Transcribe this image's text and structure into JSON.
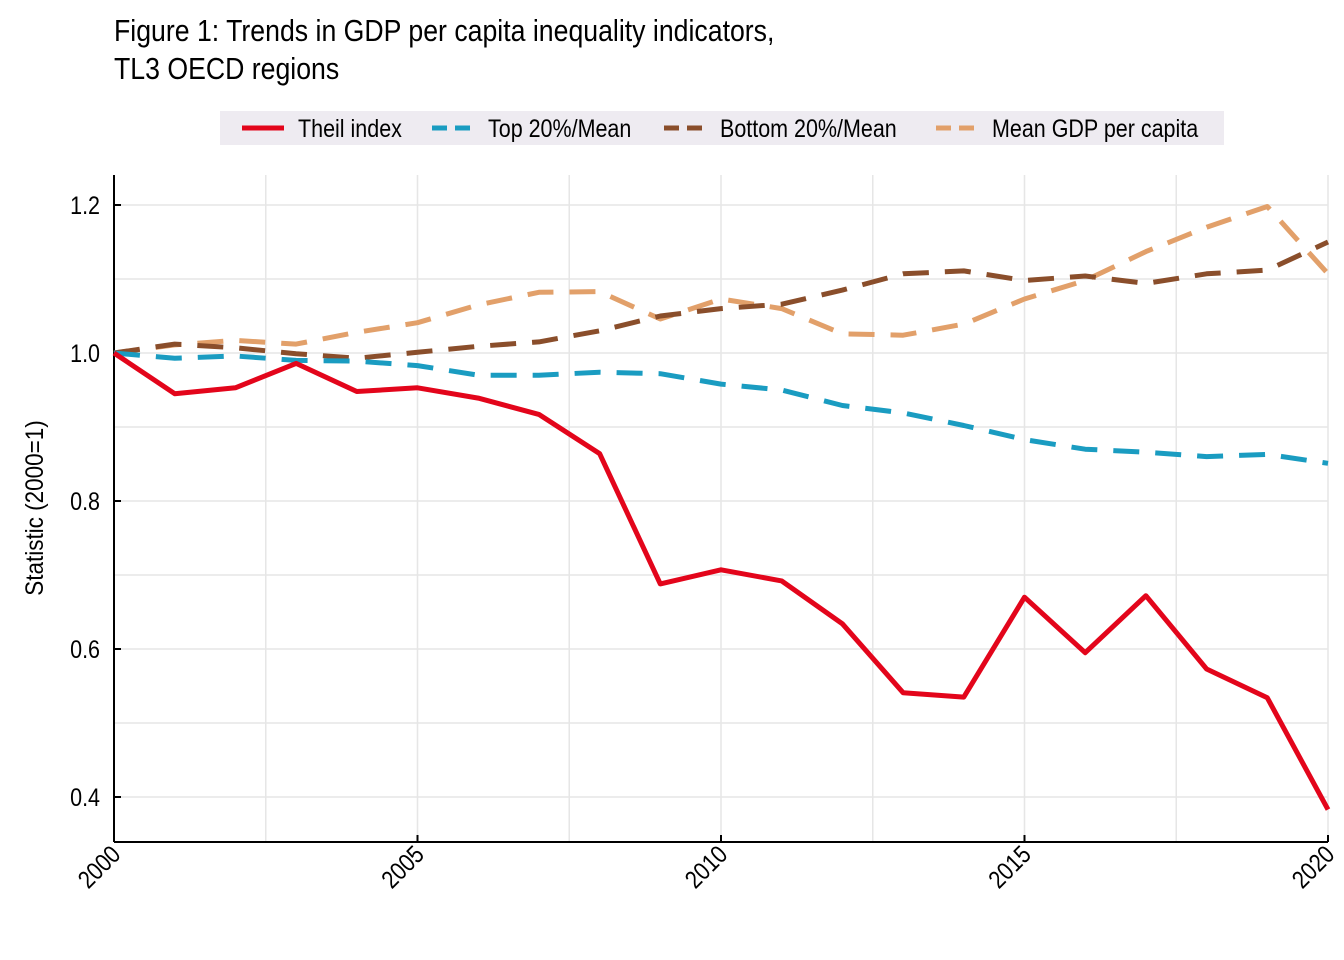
{
  "title_line1": "Figure 1: Trends in GDP per capita inequality indicators,",
  "title_line2": "TL3 OECD regions",
  "chart_data": {
    "type": "line",
    "ylabel": "Statistic (2000=1)",
    "xlabel": "",
    "xlim": [
      2000,
      2020
    ],
    "ylim": [
      0.34,
      1.24
    ],
    "x_ticks": [
      2000,
      2005,
      2010,
      2015,
      2020
    ],
    "y_ticks": [
      0.4,
      0.6,
      0.8,
      1.0,
      1.2
    ],
    "y_tick_labels": [
      "0.4",
      "0.6",
      "0.8",
      "1.0",
      "1.2"
    ],
    "grid": true,
    "legend_position": "top",
    "x": [
      2000,
      2001,
      2002,
      2003,
      2004,
      2005,
      2006,
      2007,
      2008,
      2009,
      2010,
      2011,
      2012,
      2013,
      2014,
      2015,
      2016,
      2017,
      2018,
      2019,
      2020
    ],
    "series": [
      {
        "name": "Theil index",
        "color": "#e3051b",
        "dash": "solid",
        "values": [
          1.0,
          0.945,
          0.953,
          0.986,
          0.948,
          0.953,
          0.939,
          0.917,
          0.864,
          0.688,
          0.707,
          0.692,
          0.634,
          0.541,
          0.535,
          0.67,
          0.595,
          0.672,
          0.573,
          0.534,
          0.383
        ]
      },
      {
        "name": "Top 20%/Mean",
        "color": "#1a9cc1",
        "dash": "dashed",
        "values": [
          1.0,
          0.993,
          0.996,
          0.99,
          0.989,
          0.983,
          0.97,
          0.97,
          0.974,
          0.972,
          0.958,
          0.95,
          0.929,
          0.919,
          0.902,
          0.883,
          0.87,
          0.866,
          0.86,
          0.863,
          0.851
        ]
      },
      {
        "name": "Bottom 20%/Mean",
        "color": "#8a4e2b",
        "dash": "dashed",
        "values": [
          1.0,
          1.012,
          1.007,
          0.999,
          0.993,
          1.001,
          1.009,
          1.015,
          1.03,
          1.05,
          1.06,
          1.066,
          1.085,
          1.107,
          1.111,
          1.098,
          1.104,
          1.094,
          1.107,
          1.112,
          1.15
        ]
      },
      {
        "name": "Mean GDP per capita",
        "color": "#e2a06a",
        "dash": "dashed",
        "values": [
          1.0,
          1.011,
          1.017,
          1.012,
          1.028,
          1.041,
          1.065,
          1.082,
          1.083,
          1.046,
          1.073,
          1.06,
          1.026,
          1.024,
          1.039,
          1.073,
          1.098,
          1.137,
          1.17,
          1.198,
          1.107
        ]
      }
    ]
  }
}
